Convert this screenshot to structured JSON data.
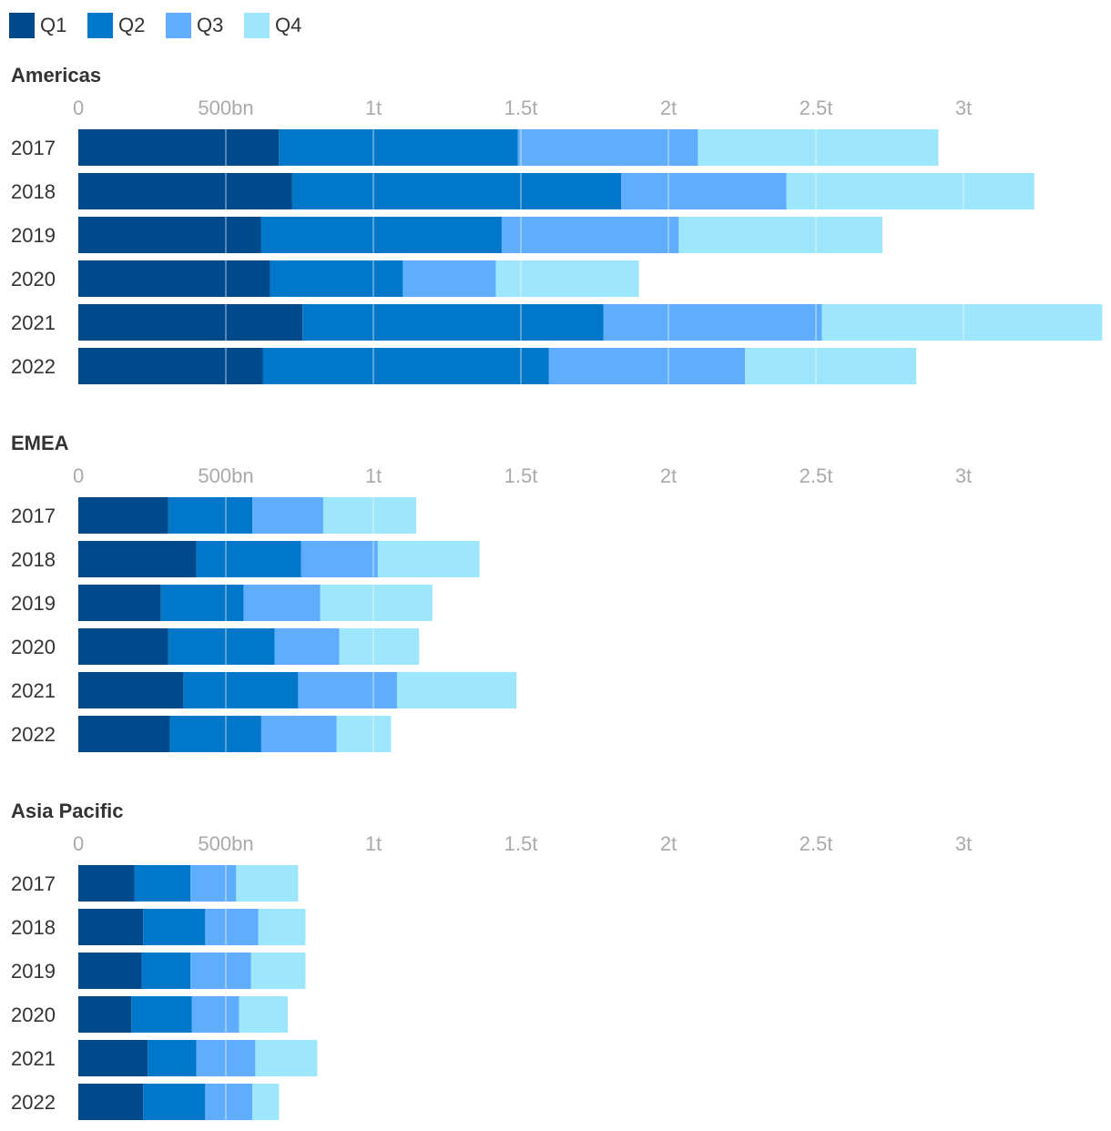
{
  "chart_data": {
    "type": "bar",
    "orientation": "horizontal",
    "stacked": true,
    "legend": {
      "position": "top-left",
      "entries": [
        "Q1",
        "Q2",
        "Q3",
        "Q4"
      ]
    },
    "colors": {
      "Q1": "#004a8c",
      "Q2": "#0077c8",
      "Q3": "#5eadfe",
      "Q4": "#9de6fc"
    },
    "x_axis": {
      "min": 0,
      "max": 3.46,
      "ticks": [
        0,
        0.5,
        1,
        1.5,
        2,
        2.5,
        3
      ],
      "tick_labels": [
        "0",
        "500bn",
        "1t",
        "1.5t",
        "2t",
        "2.5t",
        "3t"
      ],
      "unit": "trillions"
    },
    "grid": true,
    "panels": [
      {
        "title": "Americas",
        "categories": [
          "2017",
          "2018",
          "2019",
          "2020",
          "2021",
          "2022"
        ],
        "series": [
          {
            "name": "Q1",
            "values": [
              0.68,
              0.725,
              0.62,
              0.65,
              0.76,
              0.625
            ]
          },
          {
            "name": "Q2",
            "values": [
              0.81,
              1.115,
              0.815,
              0.45,
              1.02,
              0.97
            ]
          },
          {
            "name": "Q3",
            "values": [
              0.61,
              0.56,
              0.6,
              0.315,
              0.74,
              0.665
            ]
          },
          {
            "name": "Q4",
            "values": [
              0.815,
              0.84,
              0.69,
              0.485,
              0.95,
              0.58
            ]
          }
        ]
      },
      {
        "title": "EMEA",
        "categories": [
          "2017",
          "2018",
          "2019",
          "2020",
          "2021",
          "2022"
        ],
        "series": [
          {
            "name": "Q1",
            "values": [
              0.305,
              0.4,
              0.28,
              0.305,
              0.355,
              0.31
            ]
          },
          {
            "name": "Q2",
            "values": [
              0.285,
              0.355,
              0.28,
              0.36,
              0.39,
              0.31
            ]
          },
          {
            "name": "Q3",
            "values": [
              0.24,
              0.26,
              0.26,
              0.22,
              0.335,
              0.255
            ]
          },
          {
            "name": "Q4",
            "values": [
              0.315,
              0.345,
              0.38,
              0.27,
              0.405,
              0.185
            ]
          }
        ]
      },
      {
        "title": "Asia Pacific",
        "categories": [
          "2017",
          "2018",
          "2019",
          "2020",
          "2021",
          "2022"
        ],
        "series": [
          {
            "name": "Q1",
            "values": [
              0.19,
              0.22,
              0.215,
              0.18,
              0.235,
              0.22
            ]
          },
          {
            "name": "Q2",
            "values": [
              0.19,
              0.21,
              0.165,
              0.205,
              0.165,
              0.21
            ]
          },
          {
            "name": "Q3",
            "values": [
              0.155,
              0.18,
              0.205,
              0.16,
              0.2,
              0.16
            ]
          },
          {
            "name": "Q4",
            "values": [
              0.21,
              0.16,
              0.185,
              0.165,
              0.21,
              0.09
            ]
          }
        ]
      }
    ]
  }
}
